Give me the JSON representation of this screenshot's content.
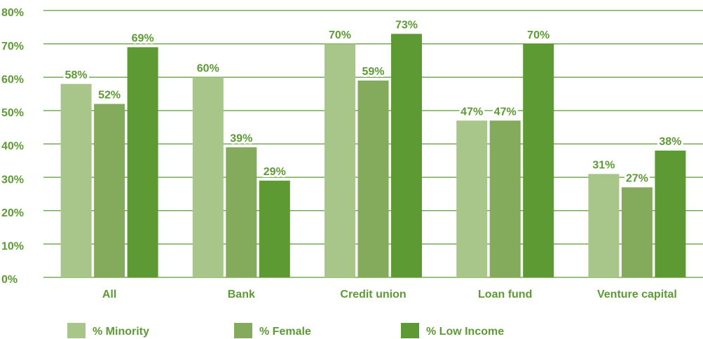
{
  "chart_data": {
    "type": "bar",
    "categories": [
      "All",
      "Bank",
      "Credit union",
      "Loan fund",
      "Venture capital"
    ],
    "series": [
      {
        "name": "% Minority",
        "color": "#a8c58a",
        "values": [
          58,
          60,
          70,
          47,
          31
        ],
        "value_labels": [
          "58%",
          "60%",
          "70%",
          "47%",
          "31%"
        ]
      },
      {
        "name": "% Female",
        "color": "#84aa5c",
        "values": [
          52,
          39,
          59,
          47,
          27
        ],
        "value_labels": [
          "52%",
          "39%",
          "59%",
          "47%",
          "27%"
        ]
      },
      {
        "name": "% Low Income",
        "color": "#5d9a34",
        "values": [
          69,
          29,
          73,
          70,
          38
        ],
        "value_labels": [
          "69%",
          "29%",
          "73%",
          "70%",
          "38%"
        ]
      }
    ],
    "ylim": [
      0,
      80
    ],
    "yticks": [
      {
        "value": 0,
        "label": "0%"
      },
      {
        "value": 10,
        "label": "10%"
      },
      {
        "value": 20,
        "label": "20%"
      },
      {
        "value": 30,
        "label": "30%"
      },
      {
        "value": 40,
        "label": "40%"
      },
      {
        "value": 50,
        "label": "50%"
      },
      {
        "value": 60,
        "label": "60%"
      },
      {
        "value": 70,
        "label": "70%"
      },
      {
        "value": 80,
        "label": "80%"
      }
    ],
    "grid": true,
    "legend": "bottom"
  }
}
